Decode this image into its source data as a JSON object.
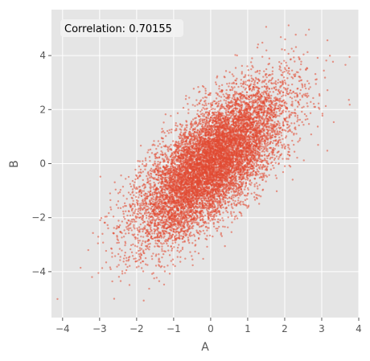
{
  "chart_data": {
    "type": "scatter",
    "title": "",
    "xlabel": "A",
    "ylabel": "B",
    "xlim": [
      -4.3,
      4.0
    ],
    "ylim": [
      -5.7,
      5.7
    ],
    "xticks": [
      -4,
      -3,
      -2,
      -1,
      0,
      1,
      2,
      3,
      4
    ],
    "yticks": [
      -4,
      -2,
      0,
      2,
      4
    ],
    "xtick_labels": [
      "−4",
      "−3",
      "−2",
      "−1",
      "0",
      "1",
      "2",
      "3",
      "4"
    ],
    "ytick_labels": [
      "−4",
      "−2",
      "0",
      "2",
      "4"
    ],
    "grid": true,
    "correlation": 0.70155,
    "annotation": "Correlation: 0.70155",
    "point_count": 10000,
    "series_color": "#E24A33",
    "background_color": "#E5E5E5",
    "grid_color": "#FFFFFF",
    "tick_color": "#555555"
  }
}
